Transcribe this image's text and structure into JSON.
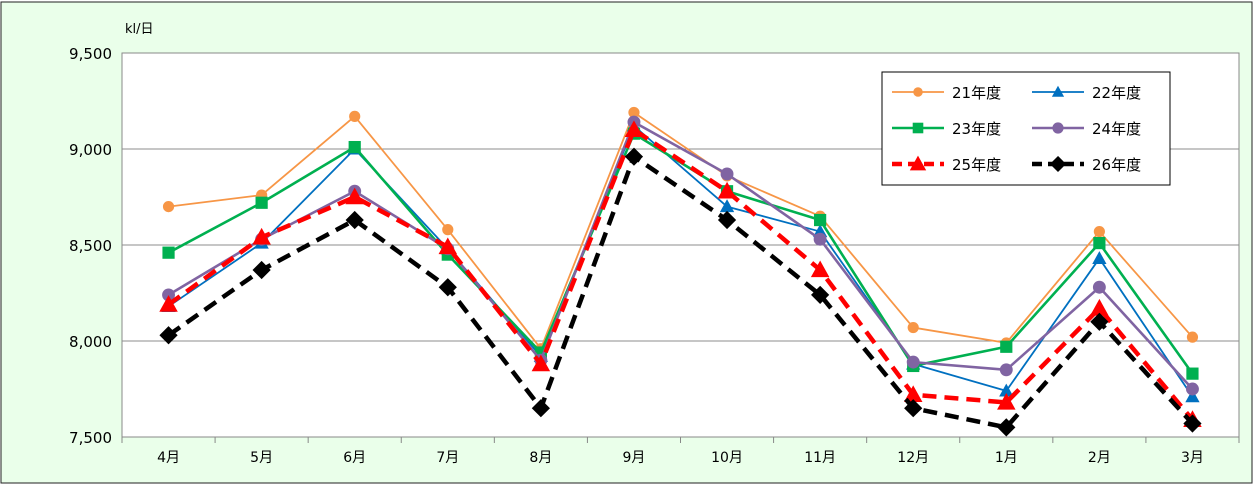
{
  "chart_data": {
    "type": "line",
    "unit_label": "kl/日",
    "categories": [
      "4月",
      "5月",
      "6月",
      "7月",
      "8月",
      "9月",
      "10月",
      "11月",
      "12月",
      "1月",
      "2月",
      "3月"
    ],
    "ylim": [
      7500,
      9500
    ],
    "yticks": [
      7500,
      8000,
      8500,
      9000,
      9500
    ],
    "ytick_labels": [
      "7,500",
      "8,000",
      "8,500",
      "9,000",
      "9,500"
    ],
    "grid": true,
    "legend_position": "top-right",
    "background": "#eaffea",
    "series": [
      {
        "name": "21年度",
        "color": "#f79646",
        "marker": "circle",
        "dash": "solid",
        "width": "thin",
        "values": [
          8700,
          8760,
          9170,
          8580,
          7960,
          9190,
          8860,
          8650,
          8070,
          7990,
          8570,
          8020
        ]
      },
      {
        "name": "22年度",
        "color": "#0070c0",
        "marker": "triangle",
        "dash": "solid",
        "width": "thin",
        "values": [
          8180,
          8510,
          9000,
          8480,
          7920,
          9120,
          8700,
          8570,
          7880,
          7740,
          8430,
          7710
        ]
      },
      {
        "name": "23年度",
        "color": "#00b050",
        "marker": "square",
        "dash": "solid",
        "width": "medium",
        "values": [
          8460,
          8720,
          9010,
          8450,
          7940,
          9080,
          8780,
          8630,
          7870,
          7970,
          8510,
          7830
        ]
      },
      {
        "name": "24年度",
        "color": "#8064a2",
        "marker": "circle",
        "dash": "solid",
        "width": "medium",
        "values": [
          8240,
          8530,
          8780,
          8480,
          7900,
          9140,
          8870,
          8530,
          7890,
          7850,
          8280,
          7750
        ]
      },
      {
        "name": "25年度",
        "color": "#ff0000",
        "marker": "triangle",
        "dash": "dashed",
        "width": "thick",
        "values": [
          8190,
          8540,
          8750,
          8490,
          7880,
          9100,
          8780,
          8370,
          7720,
          7680,
          8170,
          7590
        ]
      },
      {
        "name": "26年度",
        "color": "#000000",
        "marker": "diamond",
        "dash": "dashed",
        "width": "thick",
        "values": [
          8030,
          8370,
          8630,
          8280,
          7650,
          8960,
          8630,
          8240,
          7650,
          7550,
          8100,
          7570
        ]
      }
    ]
  }
}
